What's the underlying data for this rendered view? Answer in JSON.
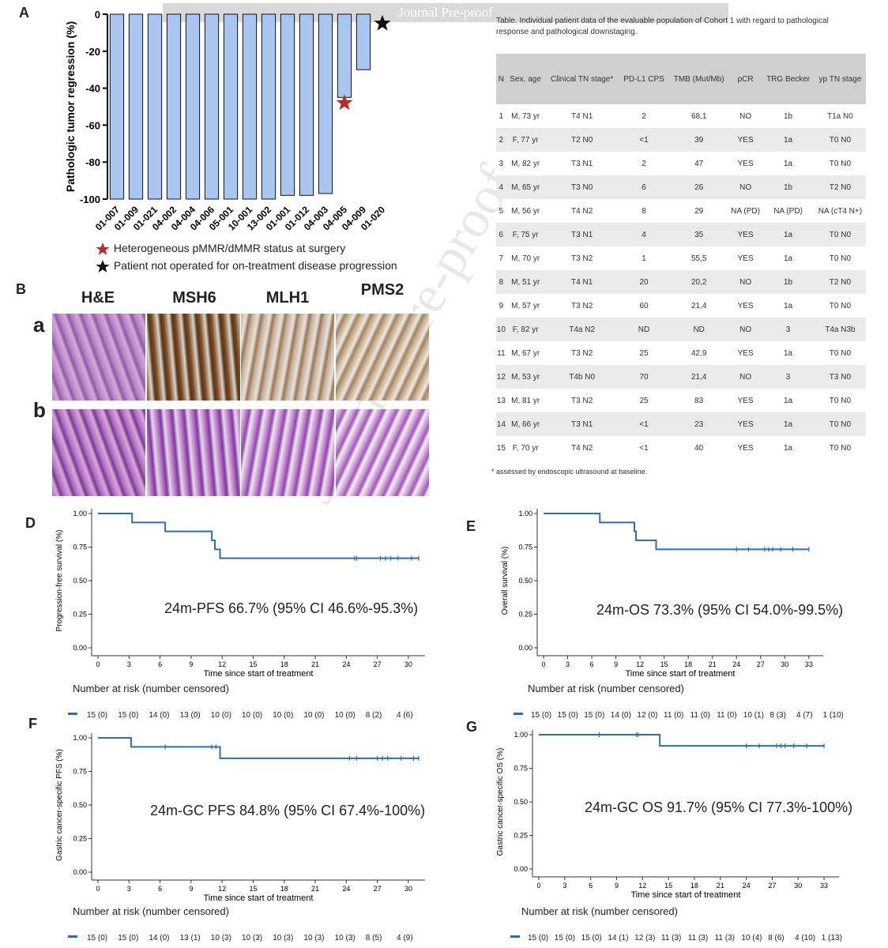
{
  "banner": "Journal Pre-proof",
  "watermark": "Journal Pre-proof",
  "panels": {
    "A": "A",
    "B": "B",
    "D": "D",
    "E": "E",
    "F": "F",
    "G": "G"
  },
  "colors": {
    "bar": "#a9c6f0",
    "km_line": "#2e6db4",
    "red_star": "#b03030",
    "black_star": "#111111",
    "header": "#d0d0d0",
    "row_alt": "#eaeaea"
  },
  "legend_A": [
    {
      "icon": "red-star",
      "text": "Heterogeneous pMMR/dMMR status at surgery"
    },
    {
      "icon": "black-star",
      "text": "Patient not operated for on-treatment disease progression"
    }
  ],
  "panelB": {
    "columns": [
      "H&E",
      "MSH6",
      "MLH1",
      "PMS2"
    ],
    "rows": [
      "a",
      "b"
    ]
  },
  "table": {
    "caption": "Table. Individual patient data of the evaluable population of Cohort 1 with regard to pathological response and pathological downstaging.",
    "headers": [
      "N",
      "Sex, age",
      "Clinical TN stage*",
      "PD-L1 CPS",
      "TMB (Mut/Mb)",
      "pCR",
      "TRG Becker",
      "yp TN stage"
    ],
    "rows": [
      [
        "1",
        "M, 73 yr",
        "T4 N1",
        "2",
        "68,1",
        "NO",
        "1b",
        "T1a N0"
      ],
      [
        "2",
        "F, 77 yr",
        "T2 N0",
        "<1",
        "39",
        "YES",
        "1a",
        "T0 N0"
      ],
      [
        "3",
        "M, 82 yr",
        "T3 N1",
        "2",
        "47",
        "YES",
        "1a",
        "T0 N0"
      ],
      [
        "4",
        "M, 65 yr",
        "T3 N0",
        "6",
        "26",
        "NO",
        "1b",
        "T2 N0"
      ],
      [
        "5",
        "M, 56 yr",
        "T4 N2",
        "8",
        "29",
        "NA (PD)",
        "NA (PD)",
        "NA (cT4 N+)"
      ],
      [
        "6",
        "F, 75 yr",
        "T3 N1",
        "4",
        "35",
        "YES",
        "1a",
        "T0 N0"
      ],
      [
        "7",
        "M, 70 yr",
        "T3 N2",
        "1",
        "55,5",
        "YES",
        "1a",
        "T0 N0"
      ],
      [
        "8",
        "M, 51 yr",
        "T4 N1",
        "20",
        "20,2",
        "NO",
        "1b",
        "T2 N0"
      ],
      [
        "9",
        "M, 57 yr",
        "T3 N2",
        "60",
        "21,4",
        "YES",
        "1a",
        "T0 N0"
      ],
      [
        "10",
        "F, 82 yr",
        "T4a N2",
        "ND",
        "ND",
        "NO",
        "3",
        "T4a N3b"
      ],
      [
        "11",
        "M, 67 yr",
        "T3 N2",
        "25",
        "42,9",
        "YES",
        "1a",
        "T0 N0"
      ],
      [
        "12",
        "M, 53 yr",
        "T4b N0",
        "70",
        "21,4",
        "NO",
        "3",
        "T3 N0"
      ],
      [
        "13",
        "M, 81 yr",
        "T3 N2",
        "25",
        "83",
        "YES",
        "1a",
        "T0 N0"
      ],
      [
        "14",
        "M, 66 yr",
        "T3 N1",
        "<1",
        "23",
        "YES",
        "1a",
        "T0 N0"
      ],
      [
        "15",
        "F, 70 yr",
        "T4 N2",
        "<1",
        "40",
        "YES",
        "1a",
        "T0 N0"
      ]
    ],
    "footnote": "* assessed by endoscopic ultrasound at baseline."
  },
  "chart_data": [
    {
      "id": "A",
      "type": "bar",
      "ylabel": "Pathologic tumor regression (%)",
      "xlabel": "",
      "ylim": [
        -100,
        0
      ],
      "yticks": [
        0,
        -20,
        -40,
        -60,
        -80,
        -100
      ],
      "categories": [
        "01-007",
        "01-009",
        "01-021",
        "04-002",
        "04-004",
        "04-006",
        "05-001",
        "10-001",
        "13-002",
        "01-001",
        "01-012",
        "04-003",
        "04-005",
        "04-009",
        "01-020"
      ],
      "values": [
        -100,
        -100,
        -100,
        -100,
        -100,
        -100,
        -100,
        -100,
        -100,
        -98,
        -98,
        -97,
        -45,
        -30,
        0
      ],
      "markers": [
        {
          "category": "04-005",
          "marker": "red-star",
          "value": -48
        },
        {
          "category": "01-020",
          "marker": "black-star",
          "value": -5
        }
      ]
    },
    {
      "id": "D",
      "type": "line",
      "ylabel": "Progression-free survival (%)",
      "xlabel": "Time since start of treatment",
      "xlim": [
        0,
        31
      ],
      "ylim": [
        0,
        1
      ],
      "xticks": [
        0,
        3,
        6,
        9,
        12,
        15,
        18,
        21,
        24,
        27,
        30
      ],
      "yticks": [
        "0.00",
        "0.25",
        "0.50",
        "0.75",
        "1.00"
      ],
      "steps": [
        [
          0,
          1.0
        ],
        [
          3.3,
          0.933
        ],
        [
          6.5,
          0.867
        ],
        [
          11.0,
          0.8
        ],
        [
          11.3,
          0.733
        ],
        [
          11.8,
          0.667
        ],
        [
          31,
          0.667
        ]
      ],
      "censored": [
        [
          24.8,
          0.667
        ],
        [
          25.0,
          0.667
        ],
        [
          27.3,
          0.667
        ],
        [
          27.8,
          0.667
        ],
        [
          28.3,
          0.667
        ],
        [
          29.0,
          0.667
        ],
        [
          30.3,
          0.667
        ],
        [
          31.0,
          0.667
        ]
      ],
      "annotation": "24m-PFS 66.7% (95% CI  46.6%-95.3%)",
      "risk_title": "Number at risk (number censored)",
      "risk": [
        "15 (0)",
        "15 (0)",
        "14 (0)",
        "13 (0)",
        "10 (0)",
        "10 (0)",
        "10 (0)",
        "10 (0)",
        "10 (0)",
        "8 (2)",
        "4 (6)"
      ]
    },
    {
      "id": "E",
      "type": "line",
      "ylabel": "Overall survival (%)",
      "xlabel": "Time since start of treatment",
      "xlim": [
        0,
        34
      ],
      "ylim": [
        0,
        1
      ],
      "xticks": [
        0,
        3,
        6,
        9,
        12,
        15,
        18,
        21,
        24,
        27,
        30,
        33
      ],
      "yticks": [
        "0.00",
        "0.25",
        "0.50",
        "0.75",
        "1.00"
      ],
      "steps": [
        [
          0,
          1.0
        ],
        [
          7.0,
          0.933
        ],
        [
          11.3,
          0.867
        ],
        [
          11.5,
          0.8
        ],
        [
          14.0,
          0.733
        ],
        [
          33,
          0.733
        ]
      ],
      "censored": [
        [
          24.0,
          0.733
        ],
        [
          25.5,
          0.733
        ],
        [
          27.5,
          0.733
        ],
        [
          28.0,
          0.733
        ],
        [
          28.5,
          0.733
        ],
        [
          29.5,
          0.733
        ],
        [
          31.0,
          0.733
        ],
        [
          33.0,
          0.733
        ]
      ],
      "annotation": "24m-OS 73.3% (95% CI 54.0%-99.5%)",
      "risk_title": "Number at risk (number censored)",
      "risk": [
        "15 (0)",
        "15 (0)",
        "15 (0)",
        "14 (0)",
        "12 (0)",
        "11 (0)",
        "11 (0)",
        "11 (0)",
        "10 (1)",
        "8 (3)",
        "4 (7)",
        "1 (10)"
      ]
    },
    {
      "id": "F",
      "type": "line",
      "ylabel": "Gastric cancer-specific PFS (%)",
      "xlabel": "Time since start of treatment",
      "xlim": [
        0,
        31
      ],
      "ylim": [
        0,
        1
      ],
      "xticks": [
        0,
        3,
        6,
        9,
        12,
        15,
        18,
        21,
        24,
        27,
        30
      ],
      "yticks": [
        "0.00",
        "0.25",
        "0.50",
        "0.75",
        "1.00"
      ],
      "steps": [
        [
          0,
          1.0
        ],
        [
          3.2,
          0.933
        ],
        [
          11.8,
          0.848
        ],
        [
          31,
          0.848
        ]
      ],
      "censored": [
        [
          6.5,
          0.933
        ],
        [
          11.0,
          0.933
        ],
        [
          11.4,
          0.933
        ],
        [
          24.3,
          0.848
        ],
        [
          25.0,
          0.848
        ],
        [
          27.0,
          0.848
        ],
        [
          27.5,
          0.848
        ],
        [
          28.0,
          0.848
        ],
        [
          29.3,
          0.848
        ],
        [
          30.5,
          0.848
        ],
        [
          31.0,
          0.848
        ]
      ],
      "annotation": "24m-GC PFS 84.8% (95% CI 67.4%-100%)",
      "risk_title": "Number at risk (number censored)",
      "risk": [
        "15 (0)",
        "15 (0)",
        "14 (0)",
        "13 (1)",
        "10 (3)",
        "10 (3)",
        "10 (3)",
        "10 (3)",
        "10 (3)",
        "8 (5)",
        "4 (9)"
      ]
    },
    {
      "id": "G",
      "type": "line",
      "ylabel": "Gastric cancer-specific OS (%)",
      "xlabel": "Time since start of treatment",
      "xlim": [
        0,
        34
      ],
      "ylim": [
        0,
        1
      ],
      "xticks": [
        0,
        3,
        6,
        9,
        12,
        15,
        18,
        21,
        24,
        27,
        30,
        33
      ],
      "yticks": [
        "0.00",
        "0.25",
        "0.50",
        "0.75",
        "1.00"
      ],
      "steps": [
        [
          0,
          1.0
        ],
        [
          14.0,
          0.917
        ],
        [
          33,
          0.917
        ]
      ],
      "censored": [
        [
          7.0,
          1.0
        ],
        [
          11.3,
          1.0
        ],
        [
          11.5,
          1.0
        ],
        [
          24.0,
          0.917
        ],
        [
          25.5,
          0.917
        ],
        [
          27.5,
          0.917
        ],
        [
          28.0,
          0.917
        ],
        [
          28.5,
          0.917
        ],
        [
          29.5,
          0.917
        ],
        [
          31.0,
          0.917
        ],
        [
          33.0,
          0.917
        ]
      ],
      "annotation": "24m-GC OS 91.7% (95% CI 77.3%-100%)",
      "risk_title": "Number at risk (number censored)",
      "risk": [
        "15 (0)",
        "15 (0)",
        "15 (0)",
        "14 (1)",
        "12 (3)",
        "11 (3)",
        "11 (3)",
        "11 (3)",
        "10 (4)",
        "8 (6)",
        "4 (10)",
        "1 (13)"
      ]
    }
  ]
}
